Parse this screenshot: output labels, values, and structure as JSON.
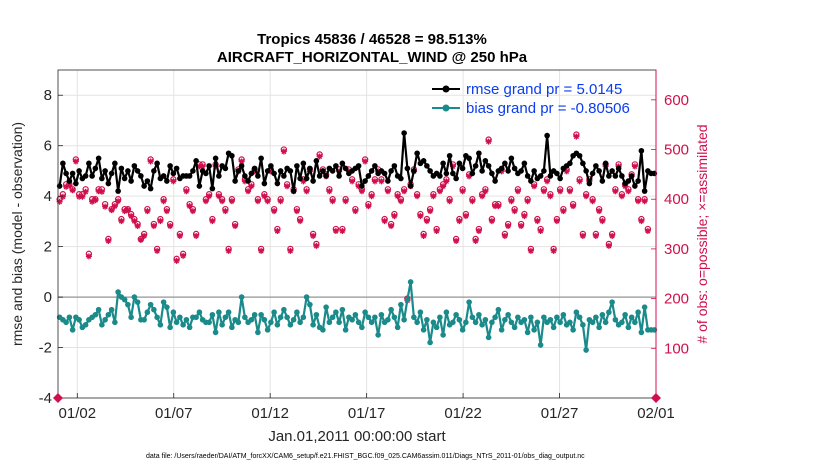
{
  "chart_data": {
    "type": "line",
    "title": "Tropics 45836 / 46528 = 98.513%",
    "subtitle": "AIRCRAFT_HORIZONTAL_WIND @ 250 hPa",
    "xlabel": "Jan.01,2011 00:00:00 start",
    "ylabel": "rmse and bias (model - observation)",
    "ylabel_right": "# of obs: o=possible; ×=assimilated",
    "footer": "data file: /Users/raeder/DAI/ATM_forcXX/CAM6_setup/f.e21.FHIST_BGC.f09_025.CAM6assim.011/Diags_NTrS_2011-01/obs_diag_output.nc",
    "xlim": [
      0,
      31
    ],
    "ylim": [
      -4,
      9
    ],
    "ylim_right": [
      0,
      660
    ],
    "x_ticks": [
      {
        "x": 1,
        "label": "01/02"
      },
      {
        "x": 6,
        "label": "01/07"
      },
      {
        "x": 11,
        "label": "01/12"
      },
      {
        "x": 16,
        "label": "01/17"
      },
      {
        "x": 21,
        "label": "01/22"
      },
      {
        "x": 26,
        "label": "01/27"
      },
      {
        "x": 31,
        "label": "02/01"
      }
    ],
    "y_ticks": [
      -4,
      -2,
      0,
      2,
      4,
      6,
      8
    ],
    "y_ticks_right": [
      100,
      200,
      300,
      400,
      500,
      600
    ],
    "legend": [
      {
        "label": "rmse grand pr = 5.0145",
        "color": "#000000"
      },
      {
        "label": "bias grand pr = -0.80506",
        "color": "#1a8a8a"
      }
    ],
    "series": [
      {
        "name": "rmse",
        "color": "#000000",
        "values": [
          4.4,
          5.3,
          4.9,
          4.6,
          4.9,
          4.5,
          5.0,
          4.7,
          4.8,
          5.3,
          4.8,
          5.1,
          5.5,
          4.7,
          5.0,
          4.5,
          4.9,
          5.3,
          4.2,
          5.1,
          4.7,
          5.0,
          4.6,
          5.2,
          5.0,
          4.8,
          4.4,
          4.6,
          4.3,
          5.0,
          5.3,
          4.7,
          4.8,
          4.6,
          5.2,
          4.9,
          5.1,
          4.7,
          4.8,
          4.8,
          4.8,
          5.0,
          5.4,
          4.4,
          5.0,
          4.9,
          5.2,
          4.3,
          5.5,
          4.8,
          5.2,
          5.1,
          5.7,
          5.6,
          4.6,
          5.0,
          5.2,
          4.8,
          4.6,
          4.9,
          5.1,
          4.8,
          5.5,
          4.5,
          5.0,
          5.2,
          4.9,
          4.5,
          5.0,
          4.8,
          5.1,
          5.0,
          4.2,
          5.2,
          4.7,
          5.3,
          4.7,
          5.1,
          4.6,
          5.4,
          4.8,
          5.0,
          4.8,
          5.1,
          5.0,
          5.2,
          4.8,
          5.3,
          5.1,
          4.9,
          5.0,
          5.1,
          5.2,
          4.4,
          4.6,
          4.8,
          5.0,
          5.2,
          4.9,
          5.0,
          4.9,
          4.6,
          5.0,
          5.2,
          4.8,
          4.7,
          6.5,
          5.1,
          4.4,
          5.0,
          5.7,
          5.3,
          5.4,
          5.2,
          5.0,
          4.8,
          4.9,
          4.8,
          5.3,
          4.9,
          5.6,
          4.9,
          4.7,
          5.3,
          5.1,
          5.6,
          5.5,
          4.9,
          5.2,
          5.7,
          5.0,
          5.4,
          5.2,
          4.9,
          4.6,
          5.0,
          5.1,
          5.3,
          5.0,
          5.5,
          5.1,
          4.9,
          5.0,
          5.3,
          4.8,
          4.6,
          5.0,
          4.7,
          4.8,
          5.0,
          6.4,
          4.8,
          5.0,
          4.9,
          4.7,
          5.1,
          5.2,
          5.3,
          5.6,
          5.7,
          5.6,
          5.3,
          5.0,
          4.5,
          4.9,
          5.2,
          5.0,
          4.6,
          5.3,
          4.8,
          5.0,
          4.8,
          5.1,
          4.8,
          4.5,
          4.6,
          4.8,
          4.4,
          4.6,
          5.8,
          4.2,
          5.0,
          4.9,
          4.9
        ]
      },
      {
        "name": "bias",
        "color": "#1a8a8a",
        "values": [
          -0.8,
          -0.9,
          -1.0,
          -0.8,
          -1.3,
          -0.8,
          -0.9,
          -1.2,
          -1.1,
          -0.9,
          -0.8,
          -0.7,
          -0.5,
          -1.1,
          -0.9,
          -0.7,
          -0.5,
          -1.0,
          0.2,
          0.0,
          -0.1,
          -0.3,
          -0.8,
          0.0,
          -0.2,
          -0.9,
          -0.9,
          -0.6,
          -0.3,
          -0.5,
          -0.8,
          -1.1,
          -0.2,
          -0.4,
          -1.2,
          -0.6,
          -1.0,
          -0.8,
          -1.1,
          -0.9,
          -1.2,
          -0.8,
          -0.8,
          -0.6,
          -0.9,
          -1.0,
          -1.0,
          -0.7,
          -1.4,
          -0.6,
          -1.1,
          -0.8,
          -0.6,
          -1.2,
          -0.9,
          -1.0,
          0.0,
          -0.8,
          -1.0,
          -0.9,
          -0.7,
          -1.4,
          -0.7,
          -0.9,
          -1.3,
          -1.0,
          -0.6,
          -1.1,
          -0.8,
          -0.5,
          -0.8,
          -1.1,
          -0.9,
          -0.6,
          -1.0,
          -0.8,
          0.0,
          -0.3,
          -1.1,
          -0.7,
          -1.2,
          -1.3,
          -0.4,
          -1.0,
          -0.8,
          -0.6,
          -1.0,
          -0.5,
          -1.3,
          -0.8,
          -0.9,
          -0.7,
          -1.0,
          -1.2,
          -0.6,
          -0.8,
          -1.0,
          -0.8,
          -1.5,
          -0.7,
          -1.0,
          -0.9,
          -0.5,
          -0.8,
          -1.2,
          -0.3,
          -0.9,
          -0.1,
          0.6,
          -0.8,
          -1.0,
          -0.6,
          -1.3,
          -0.9,
          -1.8,
          -1.0,
          -1.2,
          -0.8,
          -1.5,
          -0.6,
          -1.1,
          -1.0,
          -0.7,
          -0.9,
          -1.3,
          -1.0,
          -0.2,
          -0.8,
          -1.0,
          -0.7,
          -1.1,
          -0.9,
          -1.6,
          -1.0,
          -0.8,
          -0.5,
          -1.3,
          -0.9,
          -0.7,
          -1.0,
          -1.2,
          -0.8,
          -1.0,
          -0.9,
          -1.4,
          -0.8,
          -1.3,
          -1.0,
          -1.9,
          -0.8,
          -1.0,
          -0.9,
          -1.2,
          -0.8,
          -1.0,
          -0.7,
          -1.1,
          -1.0,
          -1.3,
          -0.6,
          -0.8,
          -1.1,
          -2.1,
          -0.9,
          -1.0,
          -0.8,
          -1.2,
          -0.7,
          -1.0,
          -0.6,
          -0.2,
          -0.9,
          -1.1,
          -1.0,
          -0.7,
          -1.2,
          -0.8,
          -1.0,
          -0.6,
          -1.4,
          -0.4,
          -1.3,
          -1.3,
          -1.3
        ]
      },
      {
        "name": "obs_possible",
        "color": "#d0104c",
        "marker": "o",
        "values": [
          400,
          410,
          430,
          430,
          420,
          480,
          410,
          410,
          420,
          290,
          400,
          400,
          420,
          420,
          390,
          320,
          380,
          390,
          400,
          360,
          380,
          380,
          370,
          360,
          350,
          320,
          330,
          380,
          480,
          350,
          300,
          360,
          400,
          380,
          350,
          440,
          280,
          330,
          290,
          420,
          390,
          380,
          330,
          470,
          470,
          400,
          410,
          360,
          470,
          410,
          400,
          380,
          300,
          400,
          350,
          460,
          480,
          440,
          420,
          430,
          460,
          400,
          300,
          410,
          400,
          460,
          380,
          340,
          400,
          500,
          430,
          300,
          420,
          380,
          360,
          440,
          420,
          460,
          330,
          310,
          490,
          460,
          450,
          420,
          400,
          340,
          460,
          340,
          400,
          460,
          440,
          380,
          430,
          420,
          480,
          390,
          410,
          440,
          460,
          440,
          360,
          420,
          350,
          370,
          410,
          400,
          420,
          200,
          430,
          460,
          410,
          370,
          330,
          360,
          380,
          410,
          340,
          420,
          430,
          440,
          400,
          470,
          320,
          360,
          420,
          370,
          450,
          400,
          320,
          340,
          410,
          420,
          520,
          360,
          390,
          390,
          460,
          330,
          350,
          400,
          380,
          420,
          350,
          370,
          400,
          300,
          430,
          360,
          340,
          420,
          440,
          410,
          300,
          360,
          420,
          380,
          460,
          420,
          390,
          530,
          440,
          330,
          410,
          440,
          400,
          330,
          380,
          360,
          470,
          310,
          330,
          420,
          470,
          410,
          430,
          420,
          450,
          470,
          400,
          360,
          400,
          340
        ]
      },
      {
        "name": "obs_assimilated",
        "color": "#d0104c",
        "marker": "*",
        "values": [
          395,
          405,
          425,
          428,
          418,
          476,
          405,
          405,
          415,
          285,
          395,
          398,
          416,
          415,
          385,
          316,
          378,
          386,
          396,
          356,
          376,
          378,
          366,
          356,
          346,
          318,
          326,
          376,
          476,
          346,
          296,
          356,
          396,
          376,
          346,
          436,
          276,
          326,
          286,
          416,
          386,
          376,
          326,
          466,
          466,
          396,
          406,
          356,
          466,
          406,
          396,
          376,
          296,
          396,
          346,
          456,
          476,
          436,
          416,
          426,
          456,
          396,
          296,
          406,
          396,
          456,
          376,
          336,
          396,
          496,
          426,
          296,
          416,
          376,
          356,
          436,
          416,
          456,
          326,
          306,
          486,
          456,
          446,
          416,
          396,
          336,
          456,
          336,
          396,
          456,
          436,
          376,
          426,
          416,
          476,
          386,
          406,
          436,
          456,
          436,
          356,
          416,
          346,
          366,
          406,
          396,
          416,
          196,
          426,
          456,
          406,
          366,
          326,
          356,
          376,
          406,
          336,
          416,
          426,
          436,
          396,
          466,
          316,
          356,
          416,
          366,
          446,
          396,
          316,
          336,
          406,
          416,
          516,
          356,
          386,
          386,
          456,
          326,
          346,
          396,
          376,
          416,
          346,
          366,
          396,
          296,
          426,
          356,
          336,
          416,
          436,
          406,
          296,
          356,
          416,
          376,
          456,
          416,
          386,
          526,
          436,
          326,
          406,
          436,
          396,
          326,
          376,
          356,
          466,
          306,
          326,
          416,
          466,
          406,
          426,
          416,
          446,
          466,
          396,
          356,
          396,
          336
        ]
      }
    ]
  }
}
